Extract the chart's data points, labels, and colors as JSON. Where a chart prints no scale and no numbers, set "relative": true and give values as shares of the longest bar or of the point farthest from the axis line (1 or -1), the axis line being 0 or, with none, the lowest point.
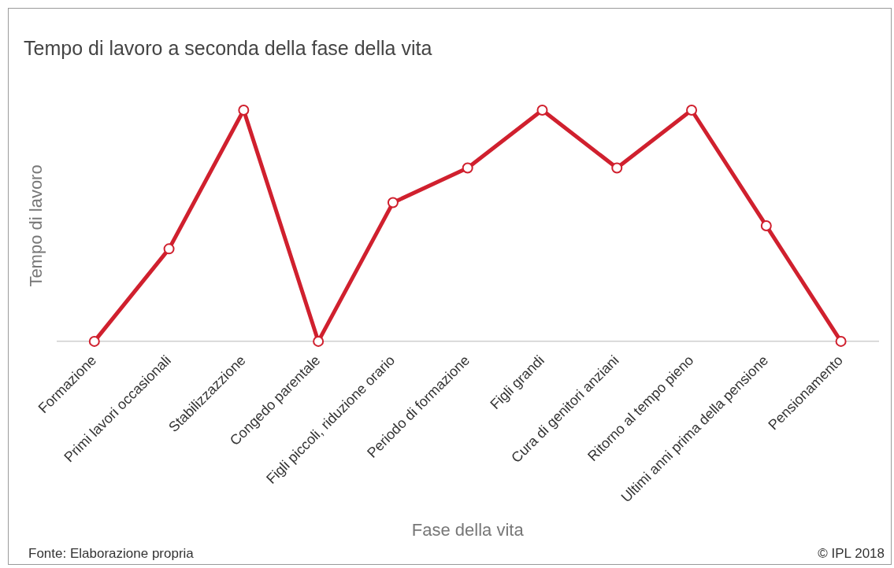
{
  "chart_data": {
    "type": "line",
    "title": "Tempo di lavoro a seconda della fase della vita",
    "xlabel": "Fase della vita",
    "ylabel": "Tempo di lavoro",
    "categories": [
      "Formazione",
      "Primi lavori occasionali",
      "Stabilizzazzione",
      "Congedo parentale",
      "Figli piccoli, riduzione orario",
      "Periodo di formazione",
      "Figli grandi",
      "Cura di genitori anziani",
      "Ritorno al tempo pieno",
      "Ultimi anni prima della pensione",
      "Pensionamento"
    ],
    "series": [
      {
        "color": "#d0202e",
        "values": [
          0,
          0.4,
          1,
          0,
          0.6,
          0.75,
          1,
          0.75,
          1,
          0.5,
          0
        ]
      }
    ],
    "relative": true,
    "marker": "circle",
    "legend": false,
    "grid": false,
    "annotations": [
      "Fonte: Elaborazione propria",
      "© IPL 2018"
    ]
  }
}
